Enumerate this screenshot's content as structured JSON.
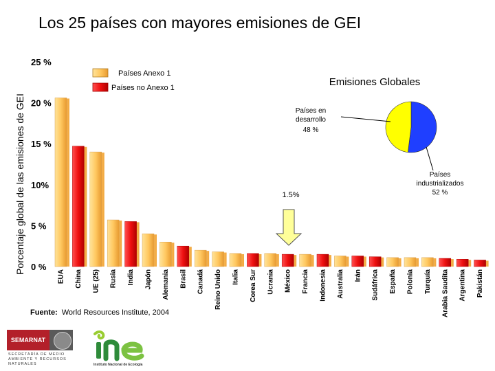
{
  "chart_data": {
    "type": "bar",
    "title": "Los 25 países con mayores emisiones de GEI",
    "ylabel": "Porcentaje global de las emisiones de GEI",
    "xlabel": "",
    "ylim": [
      0,
      25
    ],
    "yticks": [
      {
        "value": 0,
        "label": "0 %"
      },
      {
        "value": 5,
        "label": "5 %"
      },
      {
        "value": 10,
        "label": "10%"
      },
      {
        "value": 15,
        "label": "15 %"
      },
      {
        "value": 20,
        "label": "20 %"
      },
      {
        "value": 25,
        "label": "25 %"
      }
    ],
    "grid": false,
    "legend": {
      "placement": "top-center",
      "entries": [
        {
          "label": "Países Anexo 1",
          "color": "#ffd070"
        },
        {
          "label": "Países no Anexo 1",
          "color": "#ee1111"
        }
      ]
    },
    "categories": [
      "EUA",
      "China",
      "UE (25)",
      "Rusia",
      "India",
      "Japón",
      "Alemania",
      "Brasil",
      "Canadá",
      "Reino Unido",
      "Italia",
      "Corea Sur",
      "Ucrania",
      "México",
      "Francia",
      "Indonesia",
      "Australia",
      "Irán",
      "Sudáfrica",
      "España",
      "Polonia",
      "Turquía",
      "Arabia Saudita",
      "Argentina",
      "Pakistán"
    ],
    "values": [
      20.6,
      14.7,
      14.0,
      5.7,
      5.5,
      4.0,
      3.0,
      2.5,
      2.0,
      1.8,
      1.6,
      1.6,
      1.6,
      1.5,
      1.5,
      1.5,
      1.3,
      1.3,
      1.2,
      1.1,
      1.1,
      1.1,
      1.0,
      0.9,
      0.8
    ],
    "groups": [
      "Anexo 1",
      "no Anexo 1",
      "Anexo 1",
      "Anexo 1",
      "no Anexo 1",
      "Anexo 1",
      "Anexo 1",
      "no Anexo 1",
      "Anexo 1",
      "Anexo 1",
      "Anexo 1",
      "no Anexo 1",
      "Anexo 1",
      "no Anexo 1",
      "Anexo 1",
      "no Anexo 1",
      "Anexo 1",
      "no Anexo 1",
      "no Anexo 1",
      "Anexo 1",
      "Anexo 1",
      "Anexo 1",
      "no Anexo 1",
      "no Anexo 1",
      "no Anexo 1"
    ],
    "highlight": {
      "category": "México",
      "label": "1.5%"
    },
    "inset": {
      "type": "pie",
      "title": "Emisiones Globales",
      "slices": [
        {
          "label": "Países en desarrollo",
          "value": 48,
          "value_label": "48 %",
          "color": "#ffff00"
        },
        {
          "label": "Países industrializados",
          "value": 52,
          "value_label": "52 %",
          "color": "#1f3fff"
        }
      ]
    }
  },
  "footnote": {
    "label": "Fuente:",
    "text": "World Resources Institute, 2004"
  },
  "logos": {
    "semarnat": {
      "name": "SEMARNAT",
      "subtitle": "SECRETARÍA DE MEDIO AMBIENTE Y RECURSOS NATURALES"
    },
    "ine": {
      "name": "ine",
      "subtitle": "Instituto Nacional de Ecología"
    }
  }
}
